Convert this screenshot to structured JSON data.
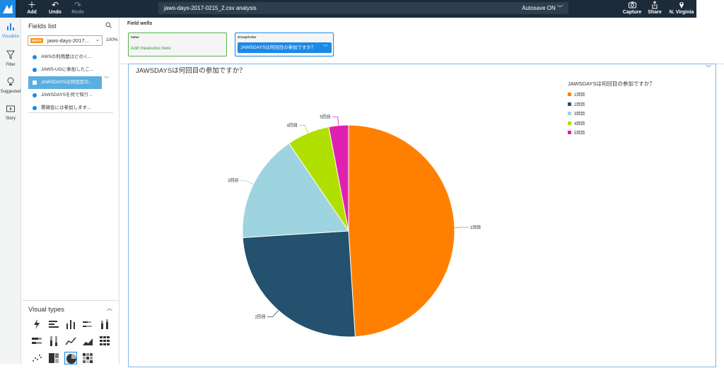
{
  "app": {
    "title_field": "jaws-days-2017-0215_2.csv analysis",
    "autosave": "Autosave ON"
  },
  "toolbar": {
    "add_label": "Add",
    "undo_label": "Undo",
    "redo_label": "Redo",
    "capture_label": "Capture",
    "share_label": "Share",
    "region_label": "N. Virginia"
  },
  "rail": {
    "visualize": "Visualize",
    "filter": "Filter",
    "suggested": "Suggested",
    "story": "Story"
  },
  "fields_panel": {
    "title": "Fields list",
    "dataset_badge": "SPICE",
    "dataset_name": "jaws-days-2017...",
    "spice_percent": "100%",
    "fields": [
      {
        "label": "AWSの利用歴はどのく...",
        "selected": false
      },
      {
        "label": "JAWS-UGに参加したこ...",
        "selected": false
      },
      {
        "label": "JAWSDAYSは何回目の...",
        "selected": true
      },
      {
        "label": "JAWSDAYSを何で知り...",
        "selected": false
      },
      {
        "label": "懇親会には参加します...",
        "selected": false
      }
    ]
  },
  "visual_types": {
    "title": "Visual types",
    "icons": [
      "autograph-icon",
      "horizontal-bar-icon",
      "vertical-bar-icon",
      "stacked-horizontal-bar-icon",
      "stacked-vertical-bar-icon",
      "stacked-100-horizontal-icon",
      "stacked-100-vertical-icon",
      "line-chart-icon",
      "area-line-icon",
      "pivot-table-icon",
      "scatter-icon",
      "tree-map-icon",
      "pie-chart-icon",
      "heat-map-icon"
    ],
    "selected": "pie-chart-icon"
  },
  "field_wells": {
    "title": "Field wells",
    "value_label": "Value",
    "value_placeholder": "Add measures here",
    "group_label": "Group/Color",
    "group_value": "JAWSDAYSは何回目の参加ですか？"
  },
  "visual": {
    "title": "JAWSDAYSは何回目の参加ですか？",
    "legend_title": "JAWSDAYSは何回目の参加ですか？"
  },
  "chart_data": {
    "type": "pie",
    "title": "JAWSDAYSは何回目の参加ですか？",
    "legend_title": "JAWSDAYSは何回目の参加ですか？",
    "legend_position": "top-right",
    "categories": [
      "1回目",
      "2回目",
      "3回目",
      "4回目",
      "5回目"
    ],
    "values": [
      49,
      25,
      16.5,
      6.5,
      3
    ],
    "colors": [
      "#ff8000",
      "#23516e",
      "#9ed3e0",
      "#b0e000",
      "#e020b0"
    ]
  }
}
